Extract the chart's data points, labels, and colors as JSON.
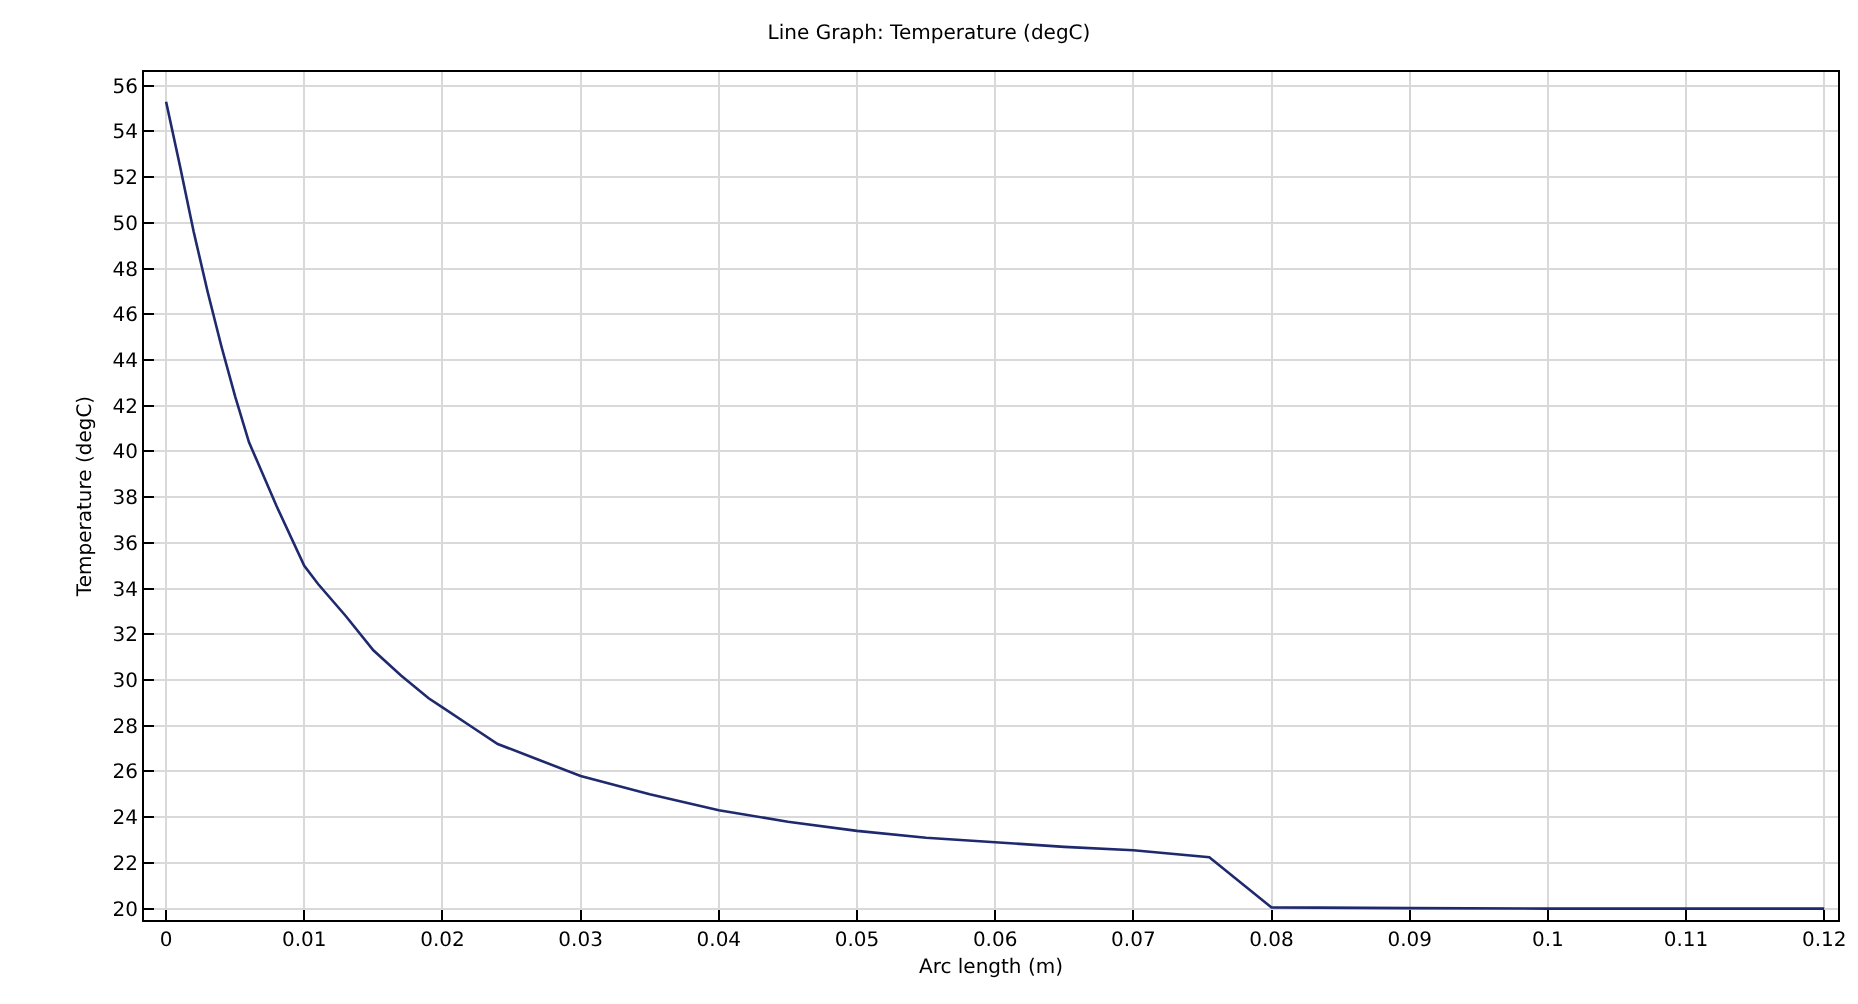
{
  "chart_data": {
    "type": "line",
    "title": "Line Graph: Temperature (degC)",
    "xlabel": "Arc length (m)",
    "ylabel": "Temperature (degC)",
    "x": [
      0,
      0.001,
      0.002,
      0.003,
      0.004,
      0.005,
      0.006,
      0.008,
      0.01,
      0.011,
      0.013,
      0.015,
      0.017,
      0.019,
      0.02,
      0.022,
      0.024,
      0.027,
      0.03,
      0.035,
      0.04,
      0.045,
      0.05,
      0.055,
      0.06,
      0.065,
      0.07,
      0.0755,
      0.08,
      0.09,
      0.1,
      0.12
    ],
    "series": [
      {
        "color": "#1f2a6e",
        "values": [
          55.3,
          52.5,
          49.6,
          47,
          44.6,
          42.4,
          40.4,
          37.6,
          35,
          34.2,
          32.8,
          31.3,
          30.2,
          29.2,
          28.8,
          28,
          27.2,
          26.5,
          25.8,
          25,
          24.3,
          23.8,
          23.4,
          23.1,
          22.9,
          22.7,
          22.55,
          22.25,
          20.05,
          20.02,
          20,
          20
        ]
      }
    ],
    "xlim": [
      -0.0016,
      0.121
    ],
    "xticks": [
      0,
      0.01,
      0.02,
      0.03,
      0.04,
      0.05,
      0.06,
      0.07,
      0.08,
      0.09,
      0.1,
      0.11,
      0.12
    ],
    "ylim": [
      19.5,
      56.6
    ],
    "yticks": [
      20,
      22,
      24,
      26,
      28,
      30,
      32,
      34,
      36,
      38,
      40,
      42,
      44,
      46,
      48,
      50,
      52,
      54,
      56
    ],
    "grid": true,
    "legend": false,
    "marker": "none",
    "line_style": "solid"
  }
}
